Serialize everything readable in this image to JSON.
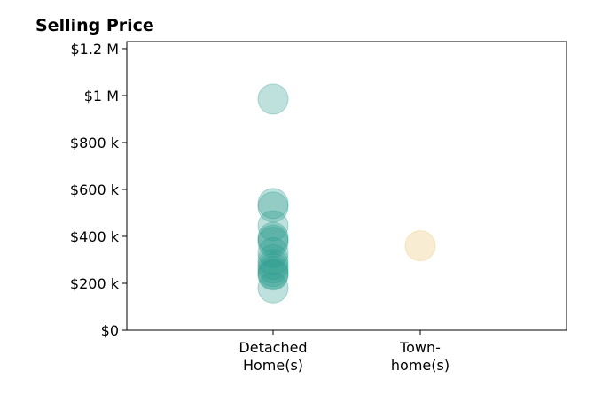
{
  "chart_data": {
    "type": "scatter",
    "title": "Selling Price",
    "xlabel": "",
    "ylabel": "",
    "categories": [
      [
        "Detached",
        "Home(s)"
      ],
      [
        "Town-",
        "home(s)"
      ]
    ],
    "ylim": [
      0,
      1230000
    ],
    "yticks": [
      {
        "value": 0,
        "label": "$0"
      },
      {
        "value": 200000,
        "label": "$200 k"
      },
      {
        "value": 400000,
        "label": "$400 k"
      },
      {
        "value": 600000,
        "label": "$600 k"
      },
      {
        "value": 800000,
        "label": "$800 k"
      },
      {
        "value": 1000000,
        "label": "$1 M"
      },
      {
        "value": 1200000,
        "label": "$1.2 M"
      }
    ],
    "grid": false,
    "series": [
      {
        "category": 0,
        "color": "#2a9d8f",
        "values": [
          985000,
          540000,
          525000,
          445000,
          395000,
          385000,
          375000,
          330000,
          300000,
          280000,
          265000,
          250000,
          240000,
          235000,
          180000
        ]
      },
      {
        "category": 1,
        "color": "#e9c46a",
        "values": [
          360000
        ]
      }
    ]
  }
}
